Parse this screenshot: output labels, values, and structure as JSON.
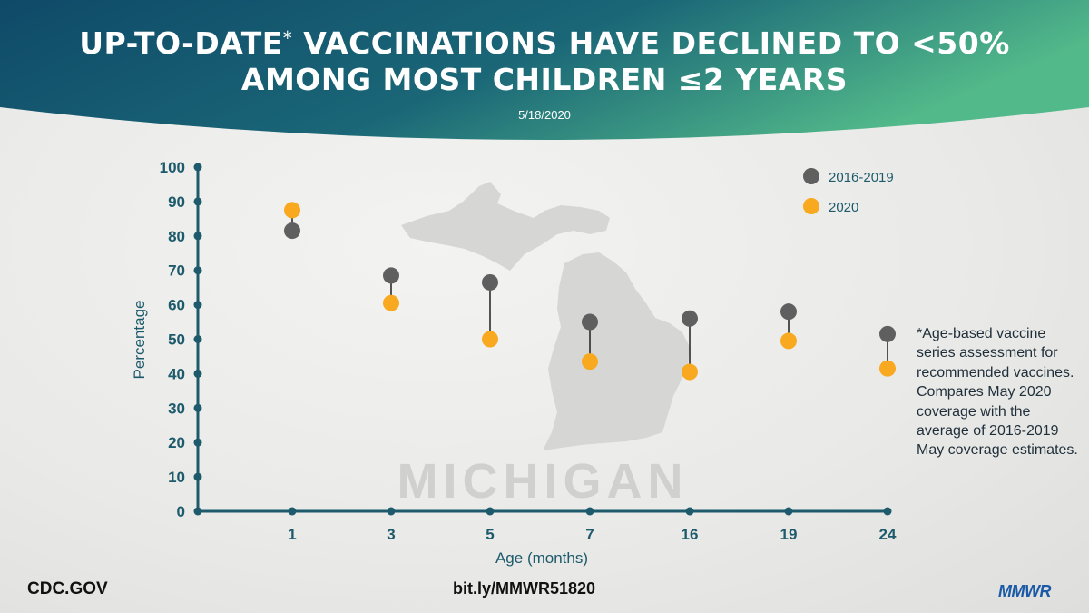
{
  "header": {
    "title_line1": "UP-TO-DATE",
    "title_asterisk": "*",
    "title_line1_rest": " VACCINATIONS HAVE DECLINED TO <50%",
    "title_line2": "AMONG MOST CHILDREN ≤2 YEARS",
    "date": "5/18/2020"
  },
  "colors": {
    "header_gradient_start": "#0f4a68",
    "header_gradient_end": "#52b98a",
    "axis": "#1d5a6b",
    "series_2016_2019": "#5f5f60",
    "series_2020": "#f8a91f",
    "map": "#d5d5d3"
  },
  "chart_data": {
    "type": "scatter",
    "title": "",
    "xlabel": "Age (months)",
    "ylabel": "Percentage",
    "categories": [
      "1",
      "3",
      "5",
      "7",
      "16",
      "19",
      "24"
    ],
    "ylim": [
      0,
      100
    ],
    "yticks": [
      0,
      10,
      20,
      30,
      40,
      50,
      60,
      70,
      80,
      90,
      100
    ],
    "grid": false,
    "legend_position": "top-right",
    "series": [
      {
        "name": "2016-2019",
        "values": [
          81.5,
          68.5,
          66.5,
          55,
          56,
          58,
          51.5
        ]
      },
      {
        "name": "2020",
        "values": [
          87.5,
          60.5,
          50,
          43.5,
          40.5,
          49.5,
          41.5
        ]
      }
    ],
    "background_label": "MICHIGAN"
  },
  "footnote": "*Age-based vaccine series assessment for recommended vaccines. Compares May 2020 coverage with the average of 2016-2019 May coverage estimates.",
  "footer": {
    "source": "CDC.GOV",
    "link": "bit.ly/MMWR51820",
    "logo": "MMWR"
  }
}
